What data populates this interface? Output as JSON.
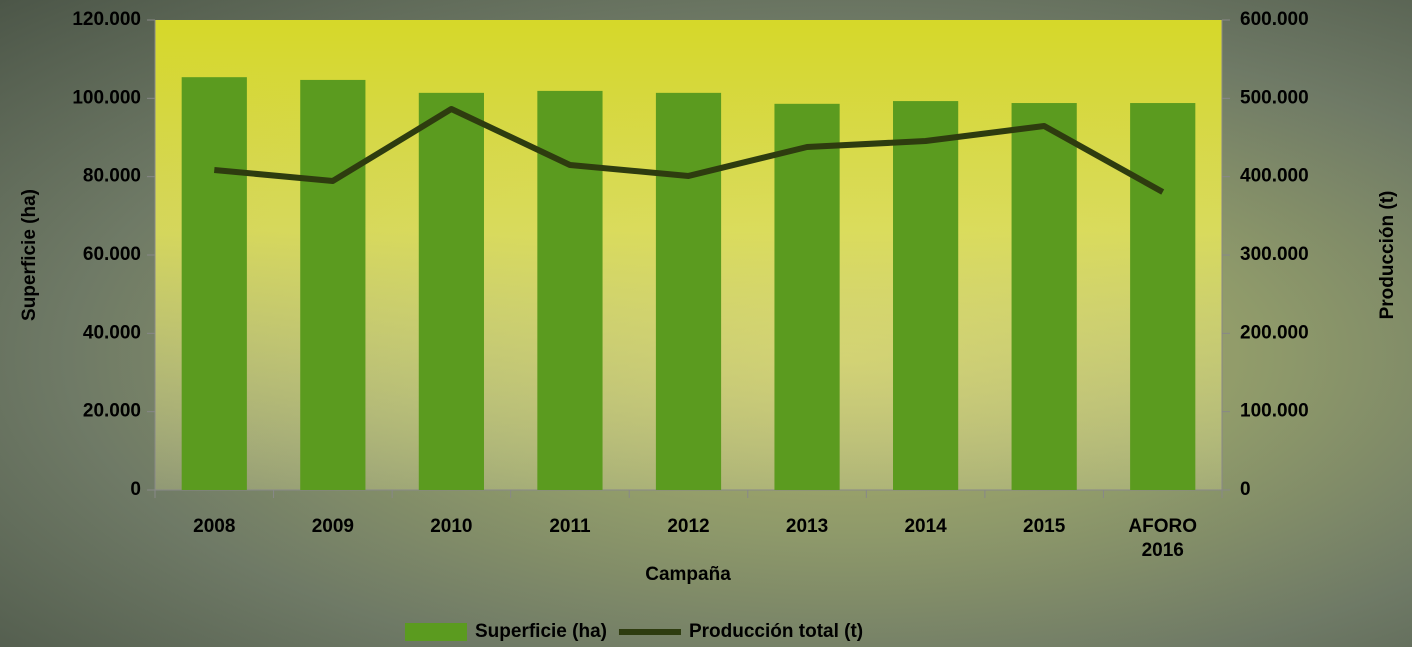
{
  "chart_data": {
    "type": "bar-line",
    "x_label": "Campaña",
    "y_label": "Superficie (ha)",
    "y2_label": "Producción (t)",
    "categories": [
      "2008",
      "2009",
      "2010",
      "2011",
      "2012",
      "2013",
      "2014",
      "2015",
      "AFORO 2016"
    ],
    "series": [
      {
        "name": "Superficie (ha)",
        "type": "bar",
        "color": "#5b9b1f",
        "values": [
          105400,
          104700,
          101400,
          101900,
          101400,
          98600,
          99300,
          98800,
          98800
        ]
      },
      {
        "name": "Producción total (t)",
        "type": "line",
        "axis": "y2",
        "color": "#2e3c0f",
        "values": [
          408500,
          394500,
          486400,
          414900,
          400900,
          437900,
          445500,
          464700,
          380400
        ]
      }
    ],
    "ylim": [
      0,
      120000
    ],
    "yticks": [
      0,
      {
        "value": 20000,
        "label": "20.000"
      },
      {
        "value": 40000,
        "label": "40.000"
      },
      {
        "value": 60000,
        "label": "60.000"
      },
      {
        "value": 80000,
        "label": "80.000"
      },
      {
        "value": 100000,
        "label": "100.000"
      },
      {
        "value": 120000,
        "label": "120.000"
      }
    ],
    "y2lim": [
      0,
      600000
    ],
    "y2ticks": [
      0,
      {
        "value": 100000,
        "label": "100.000"
      },
      {
        "value": 200000,
        "label": "200.000"
      },
      {
        "value": 300000,
        "label": "300.000"
      },
      {
        "value": 400000,
        "label": "400.000"
      },
      {
        "value": 500000,
        "label": "500.000"
      },
      {
        "value": 600000,
        "label": "600.000"
      }
    ],
    "legend": "bottom"
  }
}
